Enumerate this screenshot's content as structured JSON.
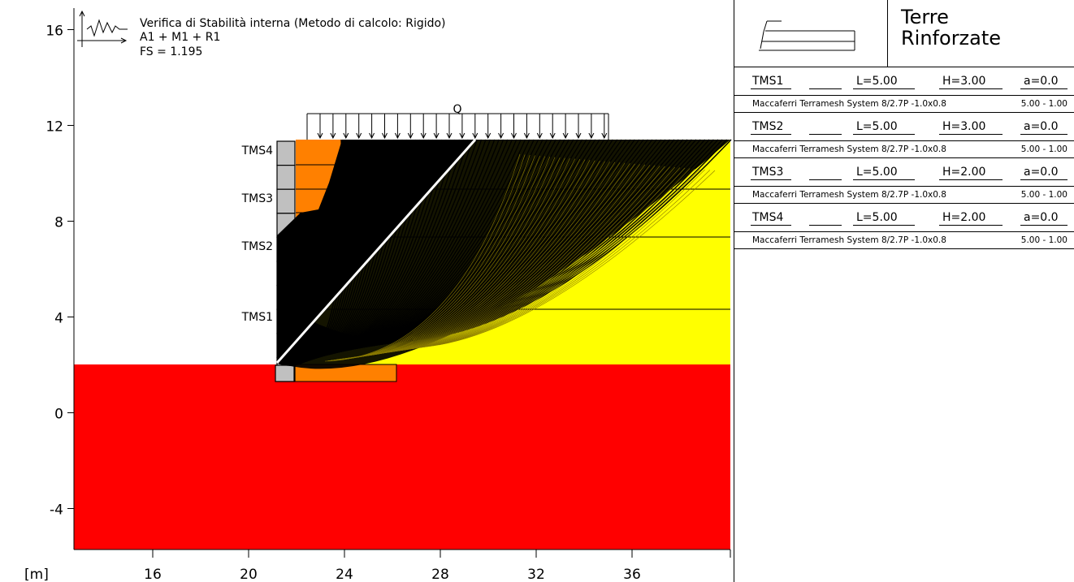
{
  "header": {
    "title_line1": "Verifica di Stabilità interna (Metodo di calcolo: Rigido)",
    "title_line2": "A1 + M1 + R1",
    "title_line3": "FS = 1.195"
  },
  "axes": {
    "unit_label": "[m]",
    "y_ticks": [
      "16",
      "12",
      "8",
      "4",
      "0",
      "-4"
    ],
    "x_ticks": [
      "16",
      "20",
      "24",
      "28",
      "32",
      "36"
    ],
    "y_range": [
      -5.8,
      16.7
    ],
    "x_range": [
      13,
      40
    ]
  },
  "drawing": {
    "load_label": "Q",
    "layer_labels": [
      "TMS4",
      "TMS3",
      "TMS2",
      "TMS1"
    ],
    "colors": {
      "foundation_soil": "#ff0000",
      "backfill_soil": "#ffff00",
      "reinforced_fill": "#ff8000",
      "facing_blocks": "#c0c0c0",
      "slip_surfaces": "#000000",
      "critical_surface": "#ffffff"
    }
  },
  "panel": {
    "title_line1": "Terre",
    "title_line2": "Rinforzate",
    "layers": [
      {
        "name": "TMS1",
        "L": "L=5.00",
        "H": "H=3.00",
        "a": "a=0.0",
        "product": "Maccaferri Terramesh System 8/2.7P -1.0x0.8",
        "dims": "5.00 - 1.00"
      },
      {
        "name": "TMS2",
        "L": "L=5.00",
        "H": "H=3.00",
        "a": "a=0.0",
        "product": "Maccaferri Terramesh System 8/2.7P -1.0x0.8",
        "dims": "5.00 - 1.00"
      },
      {
        "name": "TMS3",
        "L": "L=5.00",
        "H": "H=2.00",
        "a": "a=0.0",
        "product": "Maccaferri Terramesh System 8/2.7P -1.0x0.8",
        "dims": "5.00 - 1.00"
      },
      {
        "name": "TMS4",
        "L": "L=5.00",
        "H": "H=2.00",
        "a": "a=0.0",
        "product": "Maccaferri Terramesh System 8/2.7P -1.0x0.8",
        "dims": "5.00 - 1.00"
      }
    ]
  }
}
